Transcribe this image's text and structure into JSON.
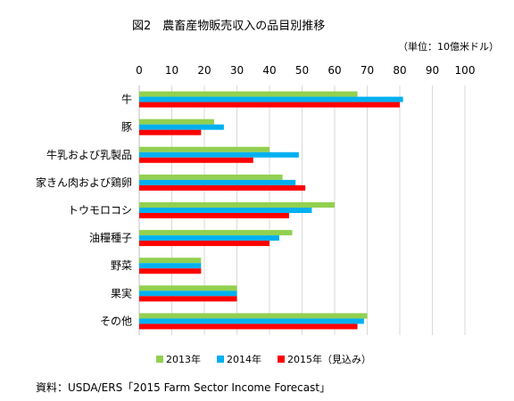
{
  "title": "図2　農畜産物販売収入の品目別推移",
  "unit": "（単位：10億米ドル）",
  "source": "資料：USDA/ERS「2015 Farm Sector Income Forecast」",
  "chart_data": {
    "type": "bar",
    "orientation": "horizontal",
    "categories": [
      "牛",
      "豚",
      "牛乳および乳製品",
      "家きん肉および鶏卵",
      "トウモロコシ",
      "油糧種子",
      "野菜",
      "果実",
      "その他"
    ],
    "xlim": [
      0,
      100
    ],
    "ticks": [
      0,
      10,
      20,
      30,
      40,
      50,
      60,
      70,
      80,
      90,
      100
    ],
    "grid": true,
    "legend_position": "bottom",
    "series": [
      {
        "name": "2013年",
        "color": "#92d050",
        "values": [
          67,
          23,
          40,
          44,
          60,
          47,
          19,
          30,
          70
        ]
      },
      {
        "name": "2014年",
        "color": "#00b0f0",
        "values": [
          81,
          26,
          49,
          48,
          53,
          43,
          19,
          30,
          69
        ]
      },
      {
        "name": "2015年（見込み）",
        "color": "#ff0000",
        "values": [
          80,
          19,
          35,
          51,
          46,
          40,
          19,
          30,
          67
        ]
      }
    ]
  }
}
